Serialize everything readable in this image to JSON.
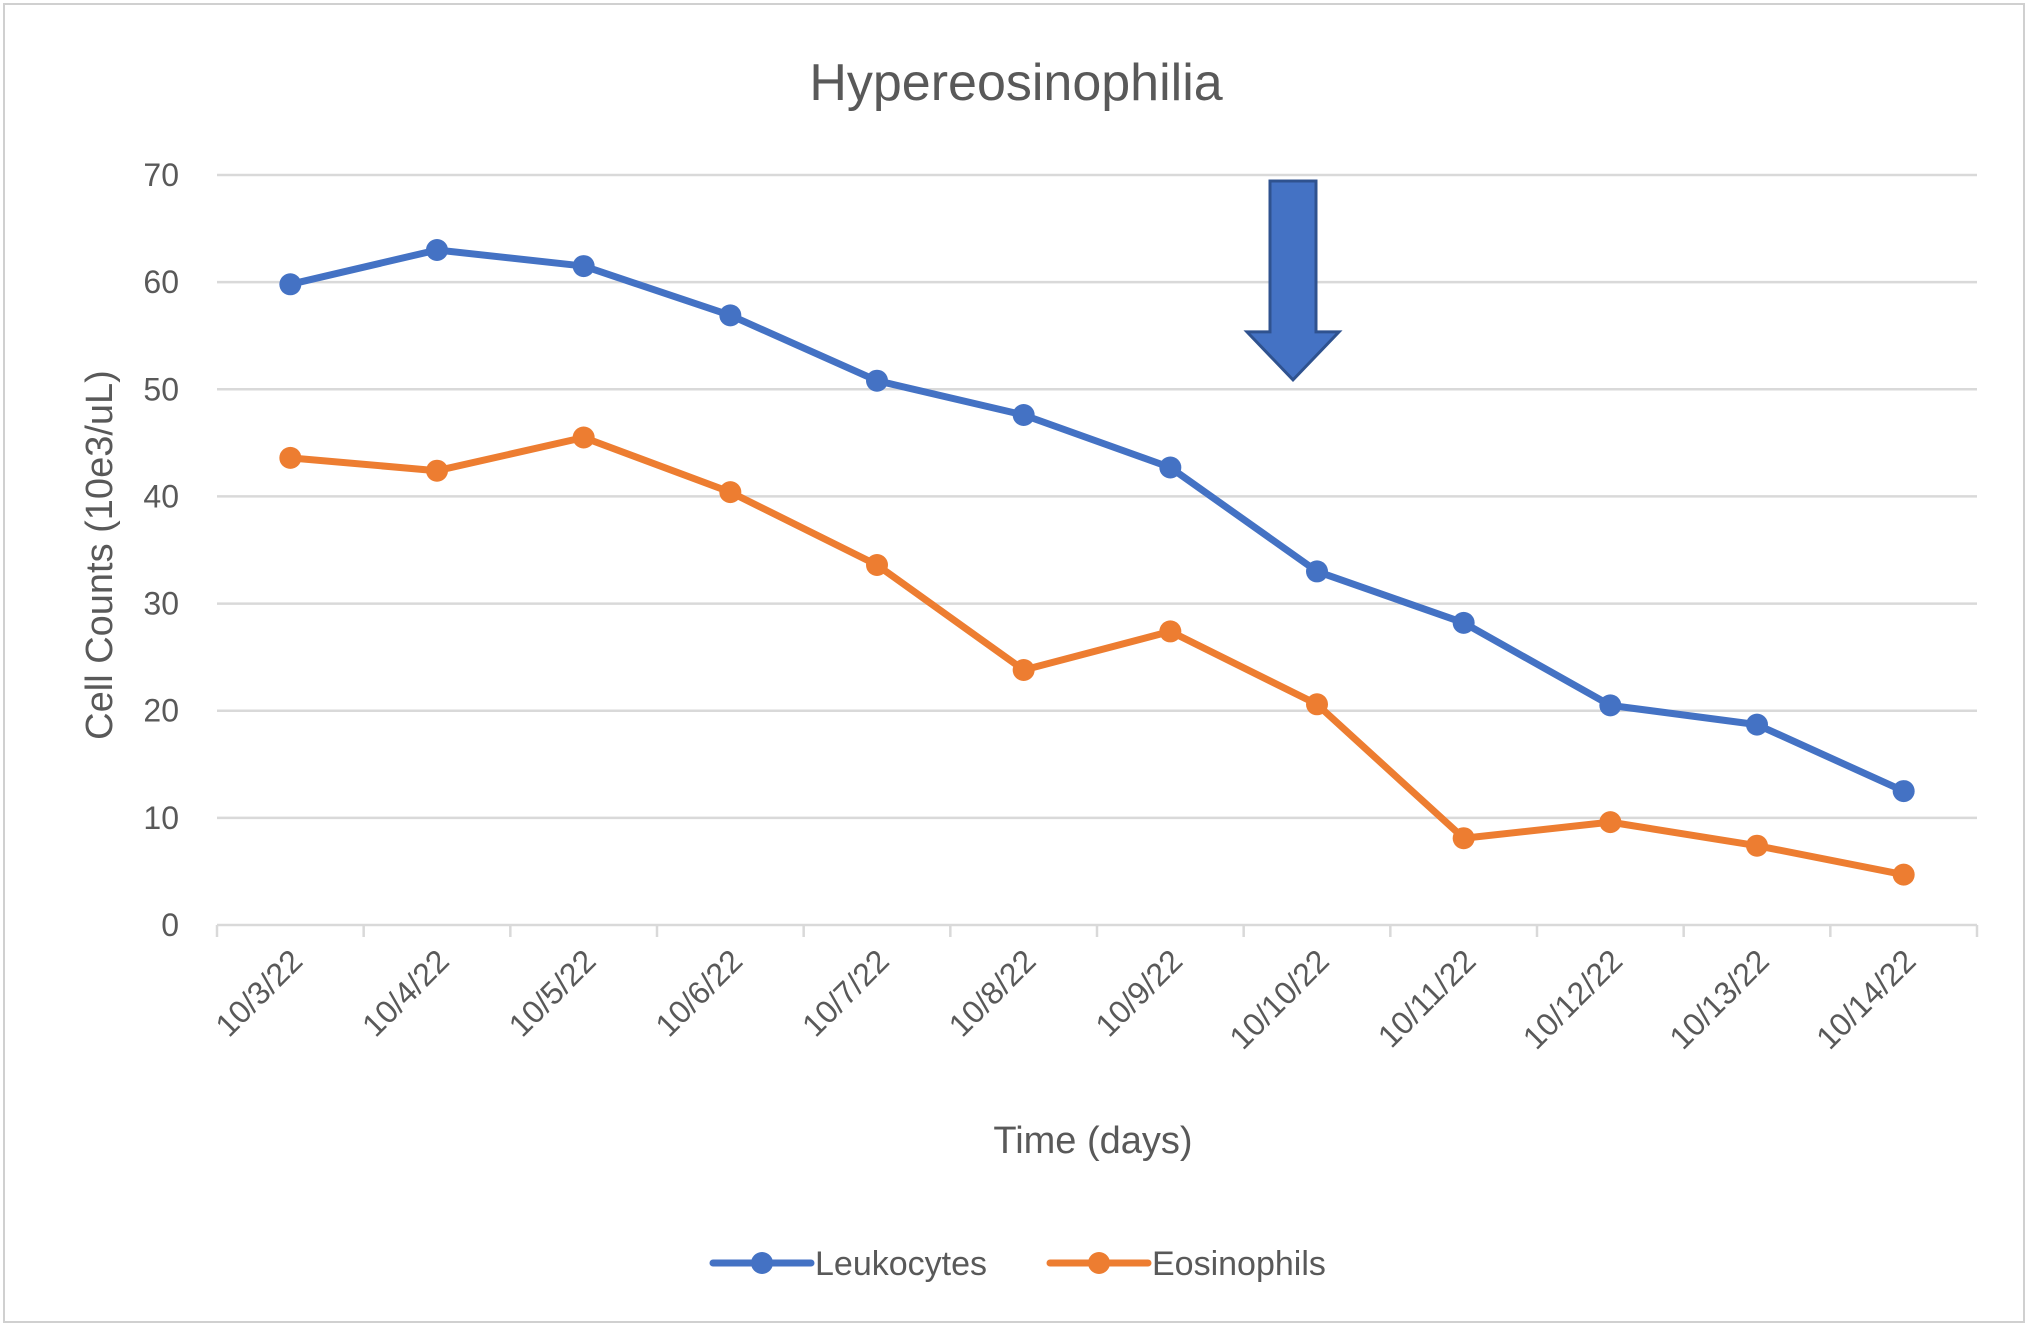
{
  "chart_data": {
    "type": "line",
    "title": "Hypereosinophilia",
    "xlabel": "Time (days)",
    "ylabel": "Cell Counts (10e3/uL)",
    "ylim": [
      0,
      70
    ],
    "yticks": [
      0,
      10,
      20,
      30,
      40,
      50,
      60,
      70
    ],
    "grid": true,
    "legend_position": "bottom",
    "categories": [
      "10/3/22",
      "10/4/22",
      "10/5/22",
      "10/6/22",
      "10/7/22",
      "10/8/22",
      "10/9/22",
      "10/10/22",
      "10/11/22",
      "10/12/22",
      "10/13/22",
      "10/14/22"
    ],
    "series": [
      {
        "name": "Leukocytes",
        "color": "#4472C4",
        "values": [
          59.8,
          63.0,
          61.5,
          56.9,
          50.8,
          47.6,
          42.7,
          33.0,
          28.2,
          20.5,
          18.7,
          12.5
        ]
      },
      {
        "name": "Eosinophils",
        "color": "#ED7D31",
        "values": [
          43.6,
          42.4,
          45.5,
          40.4,
          33.6,
          23.8,
          27.4,
          20.6,
          8.1,
          9.6,
          7.4,
          4.7
        ]
      }
    ],
    "annotation": {
      "type": "down-arrow",
      "category": "10/10/22",
      "from_value": 70,
      "to_value": 52,
      "color": "#4472C4",
      "outline": "#2F528F"
    }
  }
}
